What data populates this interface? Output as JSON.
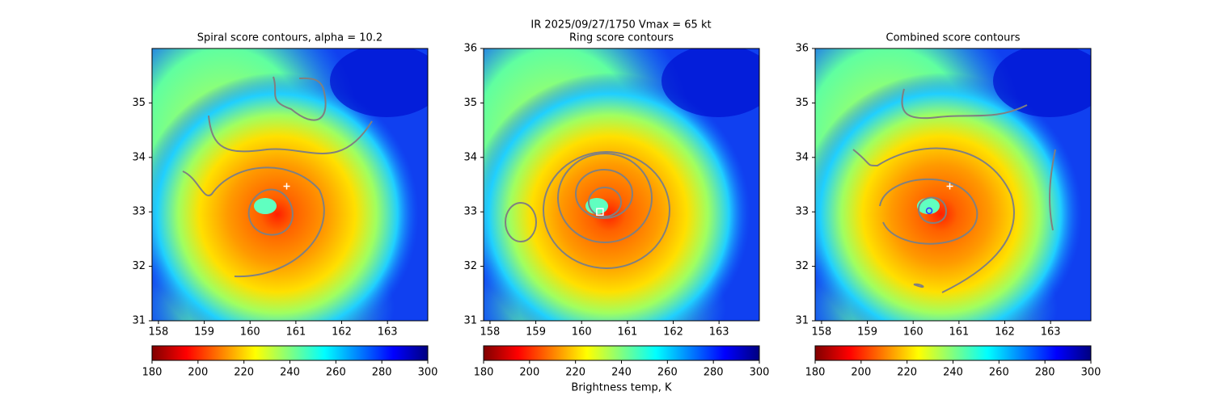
{
  "figure": {
    "title": "IR  2025/09/27/1750    Vmax = 65 kt"
  },
  "chart_data": [
    {
      "type": "image",
      "title": "Spiral score contours, alpha = 10.2",
      "xlim": [
        157.86,
        163.88
      ],
      "ylim": [
        31,
        36
      ],
      "xticks": [
        158,
        159,
        160,
        161,
        162,
        163
      ],
      "yticks": [
        31,
        32,
        33,
        34,
        35
      ],
      "colorbar": {
        "lim": [
          180,
          300
        ],
        "ticks": [
          180,
          200,
          220,
          240,
          260,
          280,
          300
        ]
      },
      "markers": [
        {
          "shape": "plus",
          "color": "#ffffff",
          "x": 160.8,
          "y": 33.47
        }
      ]
    },
    {
      "type": "image",
      "title": "Ring score contours",
      "xlim": [
        157.86,
        163.88
      ],
      "ylim": [
        31,
        36
      ],
      "xticks": [
        158,
        159,
        160,
        161,
        162,
        163
      ],
      "yticks": [
        31,
        32,
        33,
        34,
        35,
        36
      ],
      "colorbar": {
        "lim": [
          180,
          300
        ],
        "ticks": [
          180,
          200,
          220,
          240,
          260,
          280,
          300
        ],
        "label": "Brightness temp, K"
      },
      "markers": [
        {
          "shape": "square",
          "color": "#ffffff",
          "x": 160.4,
          "y": 33.0
        }
      ]
    },
    {
      "type": "image",
      "title": "Combined score contours",
      "xlim": [
        157.86,
        163.88
      ],
      "ylim": [
        31,
        36
      ],
      "xticks": [
        158,
        159,
        160,
        161,
        162,
        163
      ],
      "yticks": [
        31,
        32,
        33,
        34,
        35,
        36
      ],
      "colorbar": {
        "lim": [
          180,
          300
        ],
        "ticks": [
          180,
          200,
          220,
          240,
          260,
          280,
          300
        ]
      },
      "markers": [
        {
          "shape": "plus",
          "color": "#ffffff",
          "x": 160.8,
          "y": 33.47
        },
        {
          "shape": "circle",
          "color": "#3030ff",
          "x": 160.35,
          "y": 33.02
        }
      ]
    }
  ]
}
